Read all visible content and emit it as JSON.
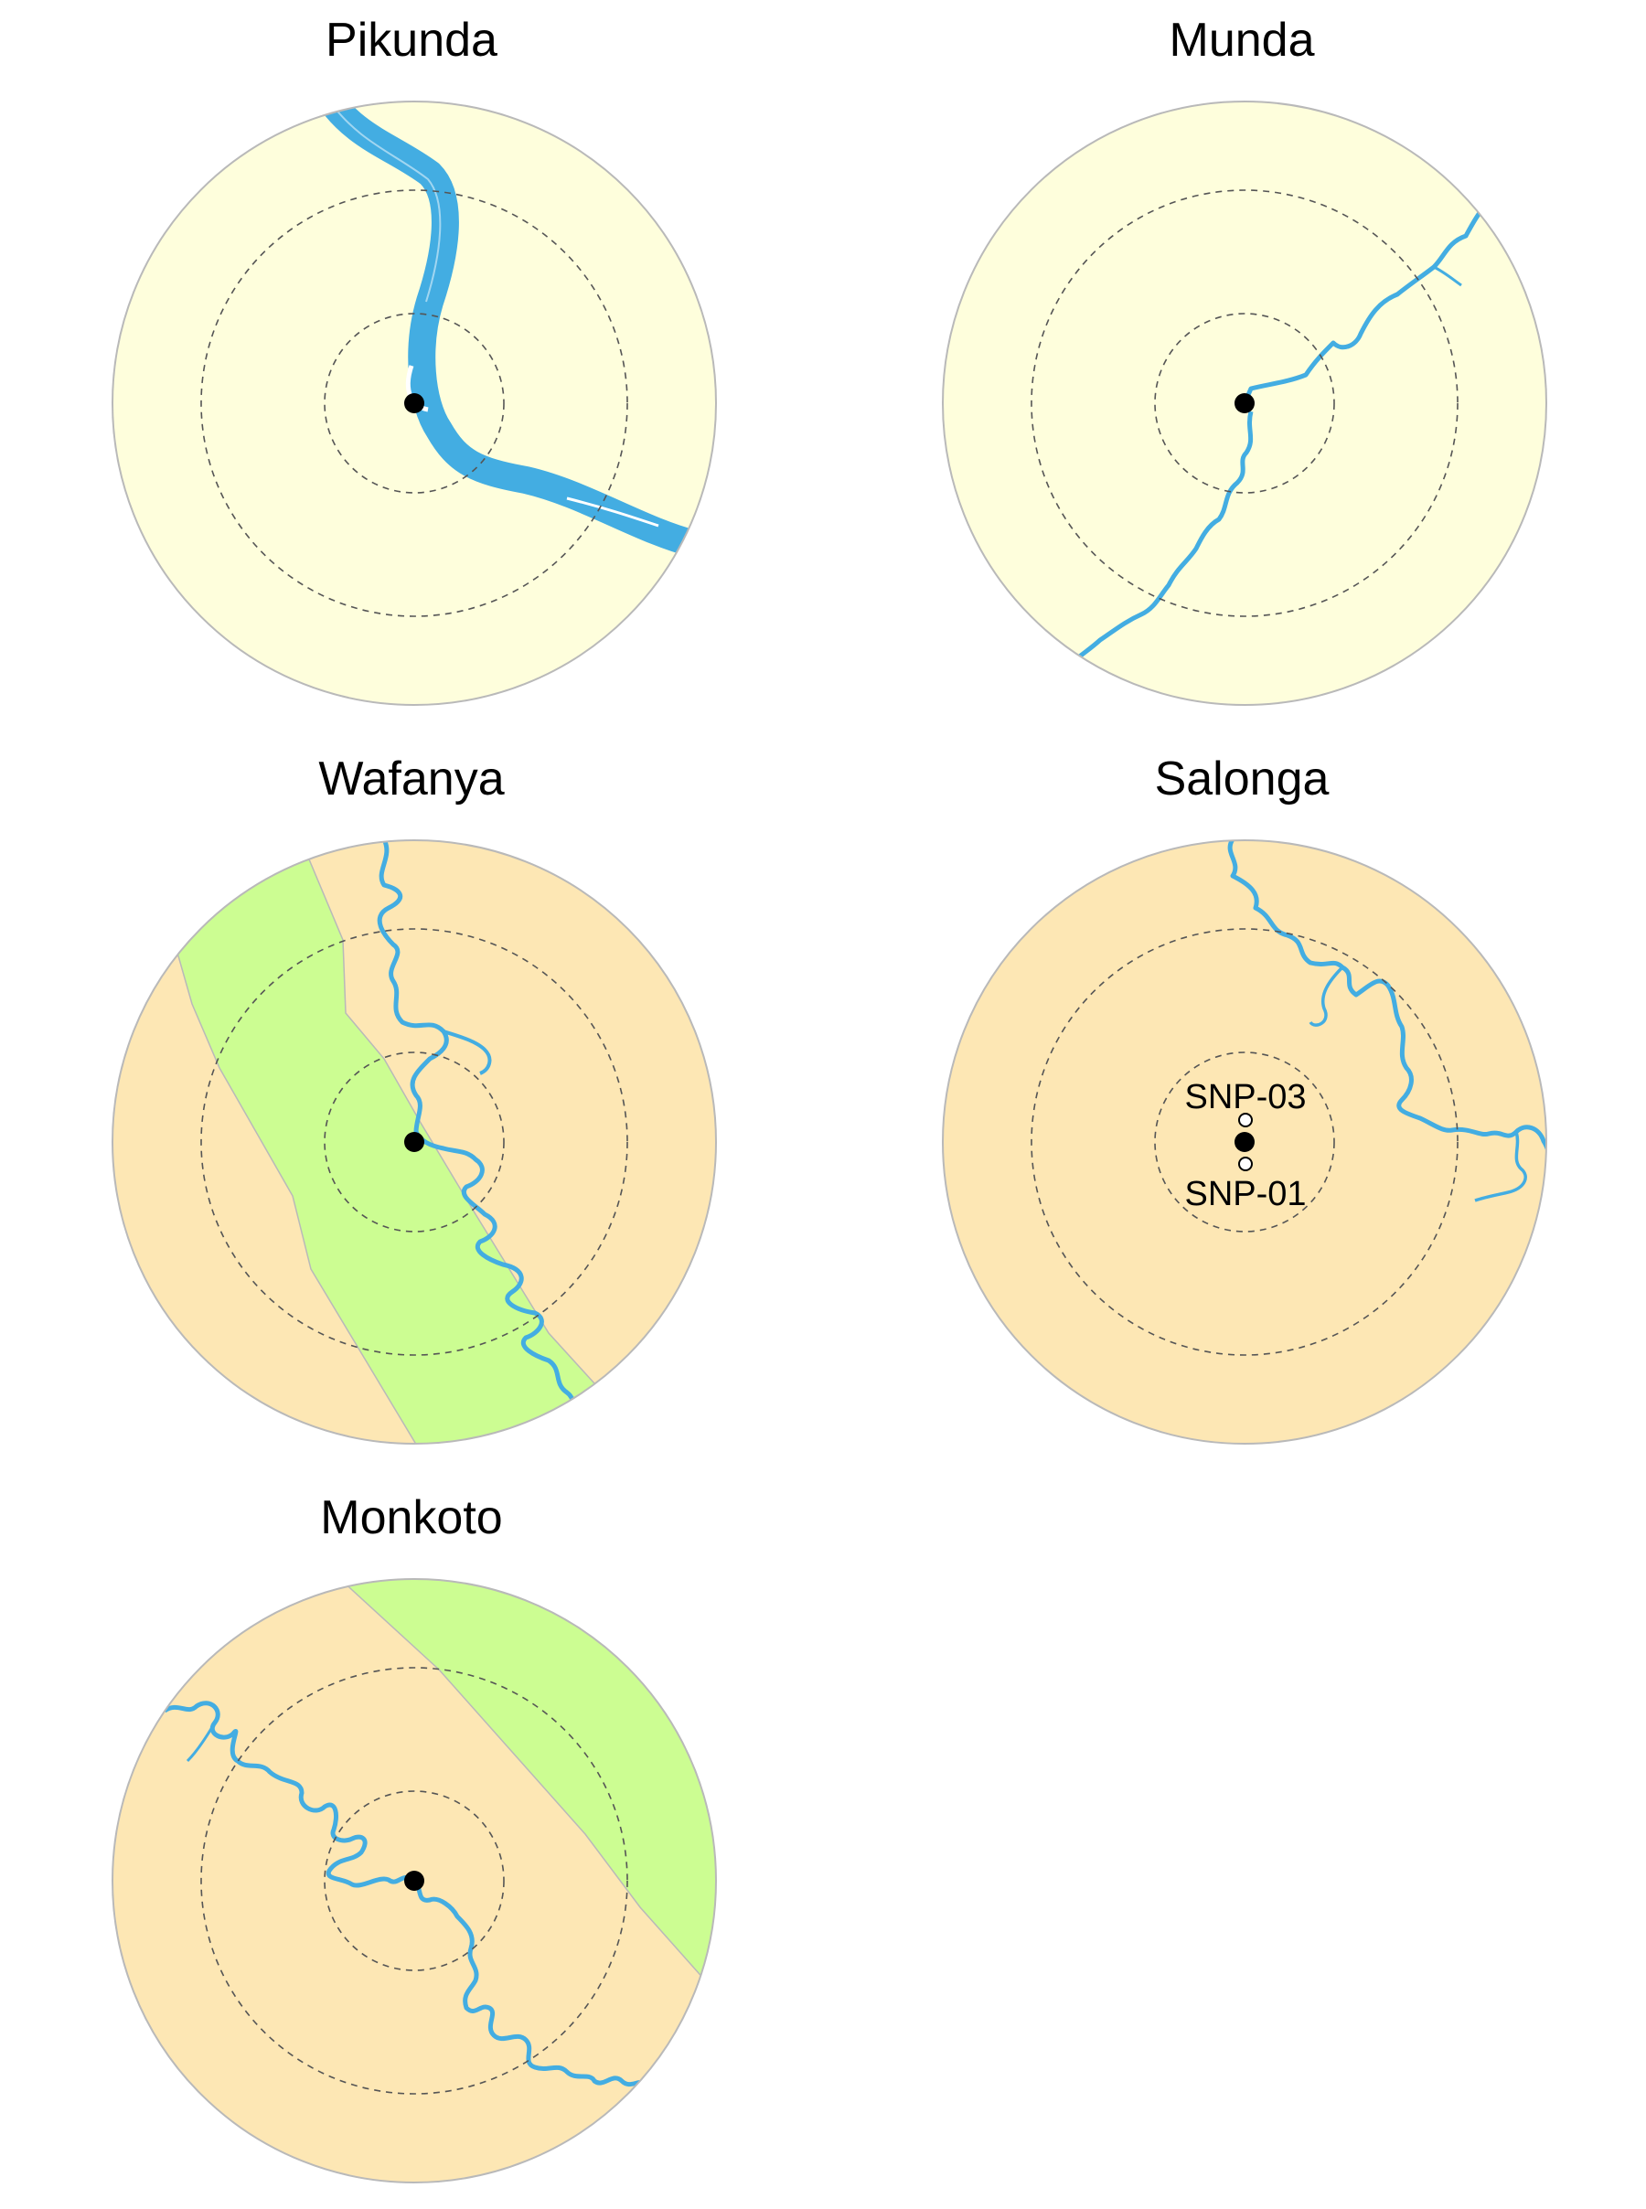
{
  "colors": {
    "background": "#ffffff",
    "savanna": "#fefedc",
    "forest_dry": "#fde7b4",
    "forest_wet": "#ccfd92",
    "river": "#43ade2",
    "circle_outline": "#b9b9b9",
    "distance_ring": "#555555",
    "site_marker": "#000000"
  },
  "maps": [
    {
      "title": "Pikunda"
    },
    {
      "title": "Munda"
    },
    {
      "title": "Wafanya"
    },
    {
      "title": "Salonga",
      "labels": [
        "SNP-03",
        "SNP-01"
      ]
    },
    {
      "title": "Monkoto"
    }
  ]
}
